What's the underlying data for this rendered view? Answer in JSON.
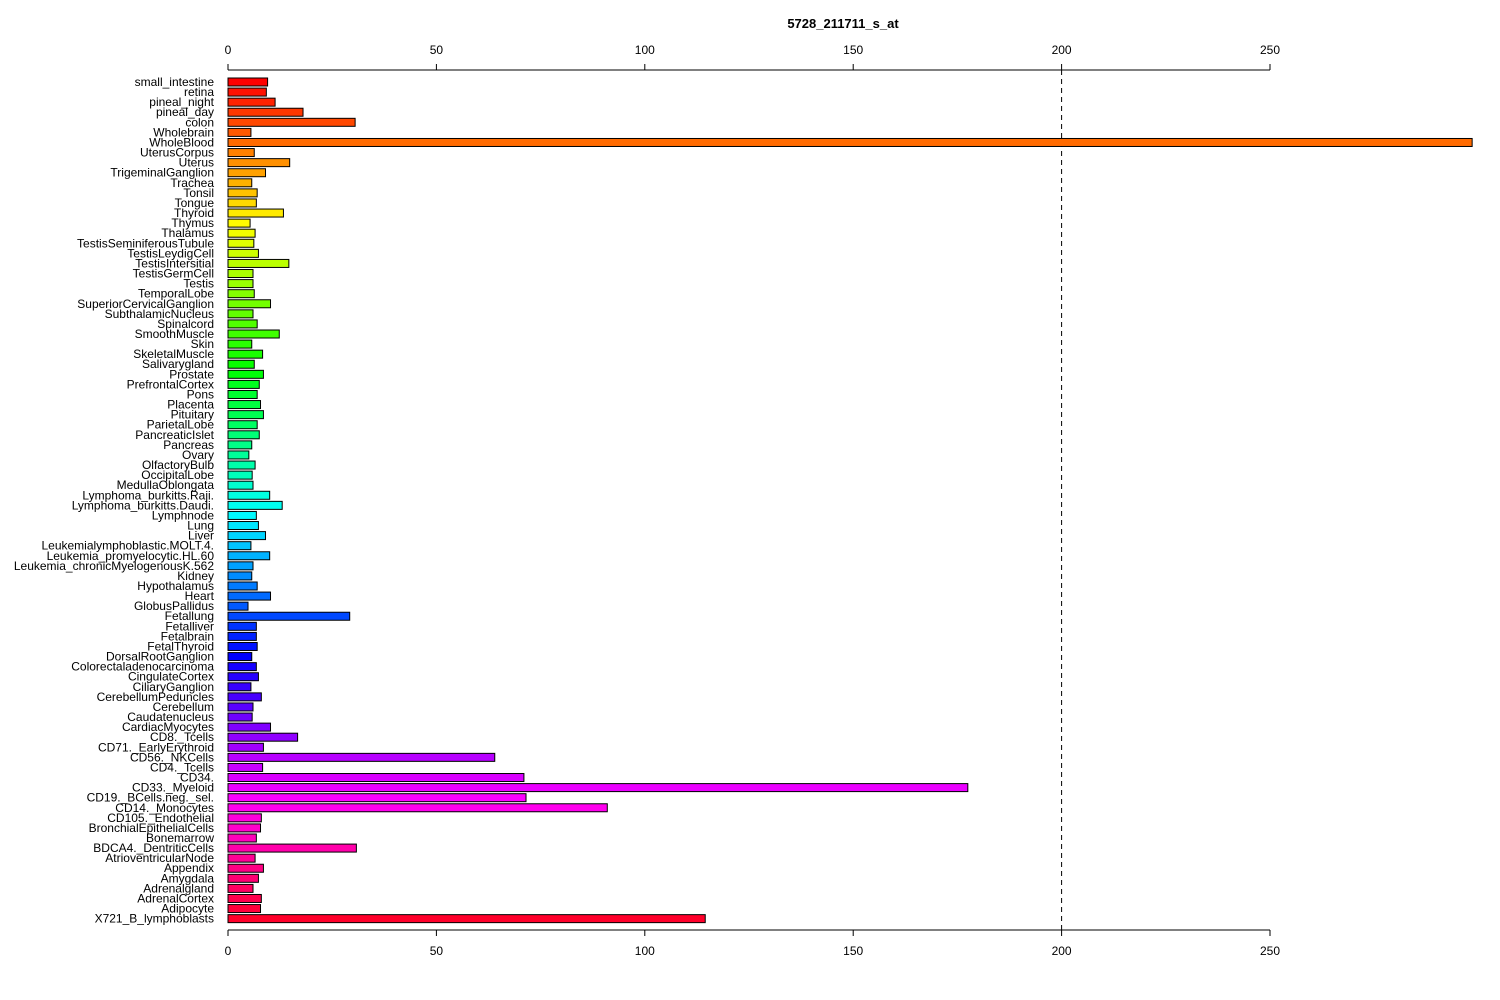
{
  "chart_data": {
    "type": "bar",
    "orientation": "horizontal",
    "title": "5728_211711_s_at",
    "xlabel": "",
    "ylabel": "",
    "xlim": [
      0,
      298
    ],
    "xticks": [
      0,
      50,
      100,
      150,
      200,
      250
    ],
    "reference_line": 200,
    "categories": [
      "small_intestine",
      "retina",
      "pineal_night",
      "pineal_day",
      "colon",
      "Wholebrain",
      "WholeBlood",
      "UterusCorpus",
      "Uterus",
      "TrigeminalGanglion",
      "Trachea",
      "Tonsil",
      "Tongue",
      "Thyroid",
      "Thymus",
      "Thalamus",
      "TestisSeminiferousTubule",
      "TestisLeydigCell",
      "TestisIntersitial",
      "TestisGermCell",
      "Testis",
      "TemporalLobe",
      "SuperiorCervicalGanglion",
      "SubthalamicNucleus",
      "Spinalcord",
      "SmoothMuscle",
      "Skin",
      "SkeletalMuscle",
      "Salivarygland",
      "Prostate",
      "PrefrontalCortex",
      "Pons",
      "Placenta",
      "Pituitary",
      "ParietalLobe",
      "PancreaticIslet",
      "Pancreas",
      "Ovary",
      "OlfactoryBulb",
      "OccipitalLobe",
      "MedullaOblongata",
      "Lymphoma_burkitts.Raji.",
      "Lymphoma_burkitts.Daudi.",
      "Lymphnode",
      "Lung",
      "Liver",
      "Leukemialymphoblastic.MOLT.4.",
      "Leukemia_promyelocytic.HL.60",
      "Leukemia_chronicMyelogenousK.562",
      "Kidney",
      "Hypothalamus",
      "Heart",
      "GlobusPallidus",
      "Fetallung",
      "Fetalliver",
      "Fetalbrain",
      "FetalThyroid",
      "DorsalRootGanglion",
      "Colorectaladenocarcinoma",
      "CingulateCortex",
      "CiliaryGanglion",
      "CerebellumPeduncles",
      "Cerebellum",
      "Caudatenucleus",
      "CardiacMyocytes",
      "CD8._Tcells",
      "CD71._EarlyErythroid",
      "CD56._NKCells",
      "CD4._Tcells",
      "CD34.",
      "CD33._Myeloid",
      "CD19._BCells.neg._sel.",
      "CD14._Monocytes",
      "CD105._Endothelial",
      "BronchialEpithelialCells",
      "Bonemarrow",
      "BDCA4._DentriticCells",
      "AtrioventricularNode",
      "Appendix",
      "Amygdala",
      "Adrenalgland",
      "AdrenalCortex",
      "Adipocyte",
      "X721_B_lymphoblasts"
    ],
    "values": [
      9.5,
      9.2,
      11.3,
      18,
      30.5,
      5.5,
      298.5,
      6.3,
      14.8,
      9,
      5.7,
      7,
      6.8,
      13.3,
      5.3,
      6.5,
      6.2,
      7.3,
      14.6,
      6,
      6,
      6.3,
      10.2,
      6,
      7,
      12.3,
      5.7,
      8.3,
      6.3,
      8.5,
      7.5,
      7,
      7.8,
      8.5,
      7,
      7.5,
      5.7,
      5,
      6.5,
      5.8,
      6,
      10,
      13,
      6.8,
      7.3,
      9,
      5.5,
      10,
      6,
      5.7,
      7,
      10.2,
      4.8,
      29.2,
      6.8,
      6.8,
      7,
      5.7,
      6.8,
      7.3,
      5.5,
      8,
      6,
      5.8,
      10.2,
      16.7,
      8.5,
      64,
      8.3,
      71,
      177.5,
      71.5,
      91,
      8,
      7.8,
      6.8,
      30.8,
      6.5,
      8.5,
      7.3,
      6,
      8,
      7.8,
      114.5
    ]
  }
}
